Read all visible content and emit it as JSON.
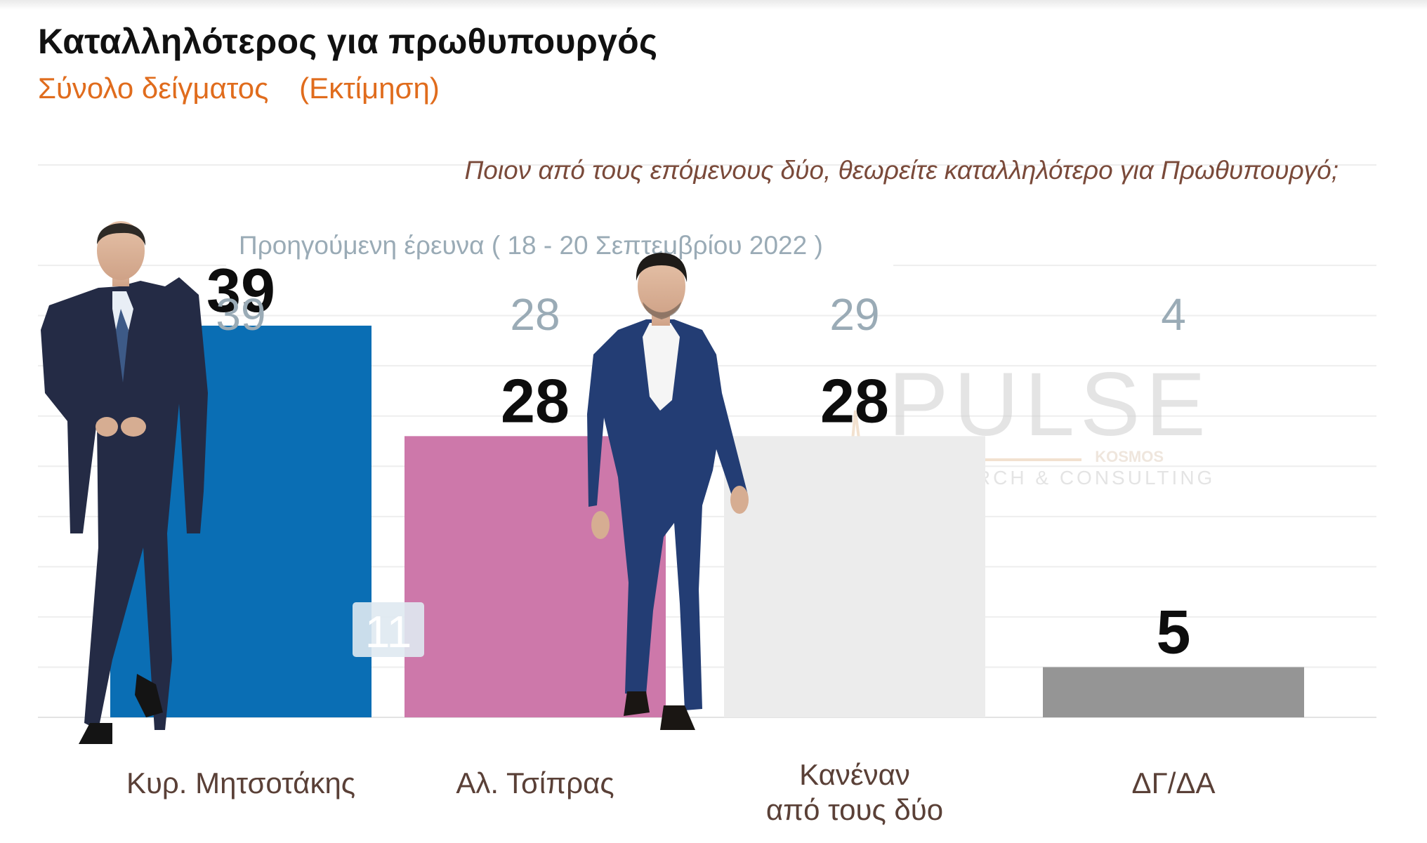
{
  "title": "Καταλληλότερος για πρωθυπουργός",
  "subtitle": "Σύνολο δείγματος",
  "subtitle_note": "(Εκτίμηση)",
  "question": "Ποιον από τους επόμενους δύο, θεωρείτε καταλληλότερο για Πρωθυπουργό;",
  "previous_survey_label": "Προηγούμενη έρευνα  ( 18 - 20 Σεπτεμβρίου  2022 )",
  "watermark": {
    "brand": "PULSE",
    "sub_brand": "KOSMOS",
    "tagline": "RESEARCH & CONSULTING"
  },
  "colors": {
    "title": "#111111",
    "subtitle": "#e06c1d",
    "question": "#7a4a3a",
    "previous": "#9aabb6",
    "category_label": "#5a4037"
  },
  "photos": [
    "person-photo-mitsotakis",
    "person-photo-tsipras"
  ],
  "chart_data": {
    "type": "bar",
    "categories": [
      [
        "Κυρ. Μητσοτάκης"
      ],
      [
        "Αλ. Τσίπρας"
      ],
      [
        "Κανέναν",
        "από τους δύο"
      ],
      [
        "ΔΓ/ΔΑ"
      ]
    ],
    "values": [
      39,
      28,
      28,
      5
    ],
    "previous_values": [
      39,
      28,
      29,
      4
    ],
    "gap_annotation": {
      "text": "11",
      "between": [
        0,
        1
      ]
    },
    "bar_colors": [
      "#0a6eb4",
      "#cd78aa",
      "#ececec",
      "#959595"
    ],
    "ylim": [
      0,
      55
    ],
    "grid": true
  }
}
